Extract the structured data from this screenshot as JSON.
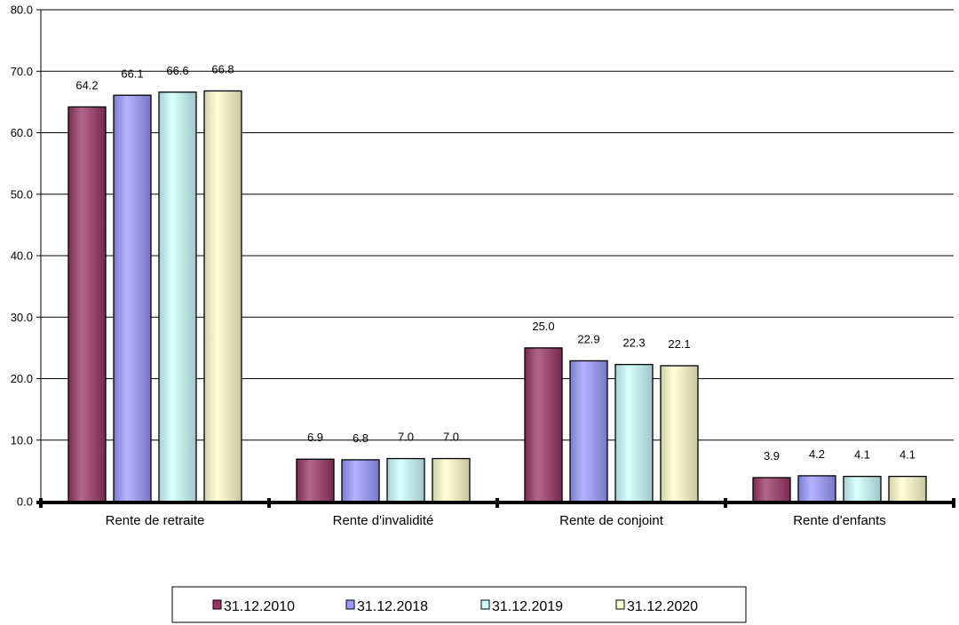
{
  "chart_data": {
    "type": "bar",
    "categories": [
      "Rente de retraite",
      "Rente d'invalidité",
      "Rente de conjoint",
      "Rente d'enfants"
    ],
    "series": [
      {
        "name": "31.12.2010",
        "values": [
          64.2,
          6.9,
          25.0,
          3.9
        ],
        "value_labels": [
          "64.2",
          "6.9",
          "25.0",
          "3.9"
        ],
        "color": "#993366"
      },
      {
        "name": "31.12.2018",
        "values": [
          66.1,
          6.8,
          22.9,
          4.2
        ],
        "value_labels": [
          "66.1",
          "6.8",
          "22.9",
          "4.2"
        ],
        "color": "#9999FF"
      },
      {
        "name": "31.12.2019",
        "values": [
          66.6,
          7.0,
          22.3,
          4.1
        ],
        "value_labels": [
          "66.6",
          "7.0",
          "22.3",
          "4.1"
        ],
        "color": "#CCFFFF"
      },
      {
        "name": "31.12.2020",
        "values": [
          66.8,
          7.0,
          22.1,
          4.1
        ],
        "value_labels": [
          "66.8",
          "7.0",
          "22.1",
          "4.1"
        ],
        "color": "#FFFFCC"
      }
    ],
    "yticks": [
      0,
      10,
      20,
      30,
      40,
      50,
      60,
      70,
      80
    ],
    "ytick_labels": [
      "0.0",
      "10.0",
      "20.0",
      "30.0",
      "40.0",
      "50.0",
      "60.0",
      "70.0",
      "80.0"
    ],
    "ylim": [
      0,
      80
    ],
    "grid": true,
    "legend": "bottom"
  }
}
